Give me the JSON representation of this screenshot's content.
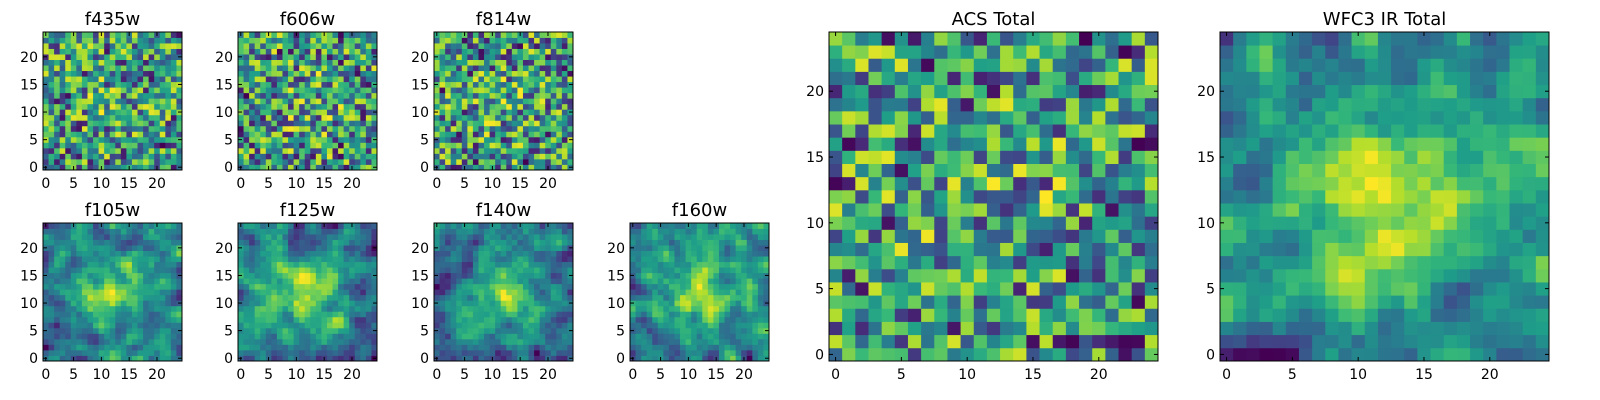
{
  "chart_data": [
    {
      "type": "heatmap",
      "title": "f435w",
      "grid": [
        25,
        25
      ],
      "xticks": [
        "0",
        "5",
        "10",
        "15",
        "20"
      ],
      "yticks": [
        "0",
        "5",
        "10",
        "15",
        "20"
      ],
      "colormap": "viridis",
      "smoothness": 0,
      "bias": 0.45,
      "seed": 11
    },
    {
      "type": "heatmap",
      "title": "f606w",
      "grid": [
        25,
        25
      ],
      "xticks": [
        "0",
        "5",
        "10",
        "15",
        "20"
      ],
      "yticks": [
        "0",
        "5",
        "10",
        "15",
        "20"
      ],
      "colormap": "viridis",
      "smoothness": 0,
      "bias": 0.45,
      "seed": 23
    },
    {
      "type": "heatmap",
      "title": "f814w",
      "grid": [
        25,
        25
      ],
      "xticks": [
        "0",
        "5",
        "10",
        "15",
        "20"
      ],
      "yticks": [
        "0",
        "5",
        "10",
        "15",
        "20"
      ],
      "colormap": "viridis",
      "smoothness": 0,
      "bias": 0.4,
      "seed": 37
    },
    {
      "type": "heatmap",
      "title": "f105w",
      "grid": [
        25,
        25
      ],
      "xticks": [
        "0",
        "5",
        "10",
        "15",
        "20"
      ],
      "yticks": [
        "0",
        "5",
        "10",
        "15",
        "20"
      ],
      "colormap": "viridis",
      "smoothness": 1,
      "bias": 0.5,
      "seed": 41
    },
    {
      "type": "heatmap",
      "title": "f125w",
      "grid": [
        25,
        25
      ],
      "xticks": [
        "0",
        "5",
        "10",
        "15",
        "20"
      ],
      "yticks": [
        "0",
        "5",
        "10",
        "15",
        "20"
      ],
      "colormap": "viridis",
      "smoothness": 1,
      "bias": 0.5,
      "seed": 53
    },
    {
      "type": "heatmap",
      "title": "f140w",
      "grid": [
        25,
        25
      ],
      "xticks": [
        "0",
        "5",
        "10",
        "15",
        "20"
      ],
      "yticks": [
        "0",
        "5",
        "10",
        "15",
        "20"
      ],
      "colormap": "viridis",
      "smoothness": 1,
      "bias": 0.5,
      "seed": 67
    },
    {
      "type": "heatmap",
      "title": "f160w",
      "grid": [
        25,
        25
      ],
      "xticks": [
        "0",
        "5",
        "10",
        "15",
        "20"
      ],
      "yticks": [
        "0",
        "5",
        "10",
        "15",
        "20"
      ],
      "colormap": "viridis",
      "smoothness": 1,
      "bias": 0.5,
      "seed": 79
    },
    {
      "type": "heatmap",
      "title": "ACS Total",
      "grid": [
        25,
        25
      ],
      "xticks": [
        "0",
        "5",
        "10",
        "15",
        "20"
      ],
      "yticks": [
        "0",
        "5",
        "10",
        "15",
        "20"
      ],
      "colormap": "viridis",
      "smoothness": 0,
      "bias": 0.5,
      "seed": 83
    },
    {
      "type": "heatmap",
      "title": "WFC3 IR Total",
      "grid": [
        25,
        25
      ],
      "xticks": [
        "0",
        "5",
        "10",
        "15",
        "20"
      ],
      "yticks": [
        "0",
        "5",
        "10",
        "15",
        "20"
      ],
      "colormap": "viridis",
      "smoothness": 1,
      "bias": 0.55,
      "seed": 97
    }
  ]
}
